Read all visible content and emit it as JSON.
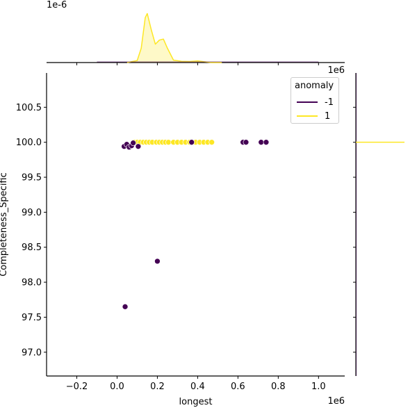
{
  "chart_data": {
    "type": "scatter",
    "kind": "jointplot",
    "title": "",
    "xlabel": "longest",
    "ylabel": "Completeness_Specific",
    "x_offset_label": "1e6",
    "top_marginal_offset_label": "1e-6",
    "x_ticks": [
      "−0.2",
      "0.0",
      "0.2",
      "0.4",
      "0.6",
      "0.8",
      "1.0"
    ],
    "x_tick_values": [
      -0.2,
      0.0,
      0.2,
      0.4,
      0.6,
      0.8,
      1.0
    ],
    "y_ticks": [
      "100.5",
      "100.0",
      "99.5",
      "99.0",
      "98.5",
      "98.0",
      "97.5",
      "97.0"
    ],
    "y_tick_values": [
      100.5,
      100.0,
      99.5,
      99.0,
      98.5,
      98.0,
      97.5,
      97.0
    ],
    "xlim": [
      -0.35,
      1.13
    ],
    "ylim": [
      96.66,
      100.99
    ],
    "grid": false,
    "legend": {
      "title": "anomaly",
      "position": "upper right",
      "entries": [
        {
          "label": "-1",
          "color": "#440154"
        },
        {
          "label": "1",
          "color": "#fde725"
        }
      ]
    },
    "series": [
      {
        "name": "-1",
        "color": "#440154",
        "points": [
          [
            0.035,
            99.94
          ],
          [
            0.048,
            99.97
          ],
          [
            0.06,
            99.93
          ],
          [
            0.072,
            99.95
          ],
          [
            0.08,
            99.99
          ],
          [
            0.105,
            99.94
          ],
          [
            0.37,
            100.0
          ],
          [
            0.625,
            100.0
          ],
          [
            0.64,
            100.0
          ],
          [
            0.715,
            100.0
          ],
          [
            0.74,
            100.0
          ],
          [
            0.2,
            98.3
          ],
          [
            0.04,
            97.65
          ]
        ]
      },
      {
        "name": "1",
        "color": "#fde725",
        "points": [
          [
            0.085,
            100.0
          ],
          [
            0.1,
            100.0
          ],
          [
            0.115,
            100.0
          ],
          [
            0.13,
            100.0
          ],
          [
            0.145,
            100.0
          ],
          [
            0.16,
            100.0
          ],
          [
            0.175,
            100.0
          ],
          [
            0.195,
            100.0
          ],
          [
            0.21,
            100.0
          ],
          [
            0.225,
            100.0
          ],
          [
            0.24,
            100.0
          ],
          [
            0.255,
            100.0
          ],
          [
            0.28,
            100.0
          ],
          [
            0.3,
            100.0
          ],
          [
            0.32,
            100.0
          ],
          [
            0.34,
            100.0
          ],
          [
            0.36,
            100.0
          ],
          [
            0.39,
            100.0
          ],
          [
            0.41,
            100.0
          ],
          [
            0.43,
            100.0
          ],
          [
            0.45,
            100.0
          ],
          [
            0.47,
            100.0
          ]
        ]
      }
    ],
    "top_marginal": {
      "type": "kde",
      "series": [
        {
          "name": "1",
          "color": "#fde725",
          "x": [
            0.05,
            0.1,
            0.12,
            0.14,
            0.15,
            0.17,
            0.19,
            0.21,
            0.23,
            0.25,
            0.28,
            0.32,
            0.36,
            0.4,
            0.43,
            0.47,
            0.52
          ],
          "y": [
            0.0,
            0.1,
            0.7,
            2.2,
            2.4,
            1.6,
            0.9,
            1.1,
            1.15,
            0.7,
            0.12,
            0.06,
            0.05,
            0.08,
            0.04,
            0.0,
            0.0
          ]
        },
        {
          "name": "-1",
          "color": "#440154",
          "x": [
            -0.1,
            1.0
          ],
          "y": [
            0.0,
            0.0
          ]
        }
      ]
    },
    "right_marginal": {
      "type": "kde",
      "series": [
        {
          "name": "1",
          "color": "#fde725",
          "note": "near-degenerate spike at y=100.0"
        },
        {
          "name": "-1",
          "color": "#440154",
          "note": "flat line along axis"
        }
      ]
    }
  },
  "legend": {
    "title": "anomaly",
    "items": [
      {
        "label": "-1",
        "color": "#440154"
      },
      {
        "label": "1",
        "color": "#fde725"
      }
    ]
  }
}
